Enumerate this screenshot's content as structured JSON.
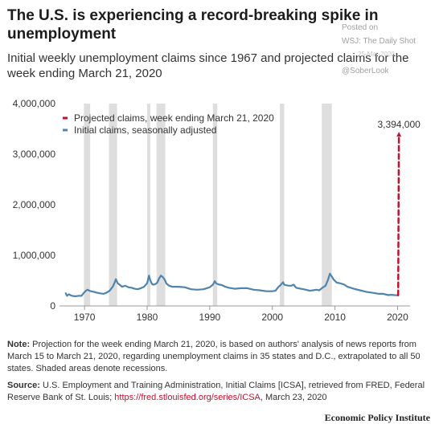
{
  "title": "The U.S. is experiencing a record-breaking spike in unemployment",
  "subtitle": "Initial weekly unemployment claims since 1967 and projected claims for the week ending March 21, 2020",
  "watermark": {
    "posted_on": "Posted on",
    "source_label": "WSJ: The Daily Shot",
    "date": "25-Mar-2020",
    "handle": "@SoberLook"
  },
  "note": {
    "label": "Note:",
    "text": " Projection for the week ending March 21, 2020, is based on authors' analysis of news reports from March 15 to March 21, 2020, regarding unemployment claims in 35 states and D.C., extrapolated to all 50 states. Shaded areas denote recessions."
  },
  "source": {
    "label": "Source:",
    "text_before": " U.S. Employment and Training Administration, Initial Claims [ICSA], retrieved from FRED, Federal Reserve Bank of St. Louis; ",
    "link": "https://fred.stlouisfed.org/series/ICSA",
    "text_after": ", March 23, 2020"
  },
  "brand": "Economic Policy Institute",
  "colors": {
    "series": "#4f84ad",
    "projection": "#c8102e",
    "recession": "#dedede",
    "axis": "#999999"
  },
  "chart_data": {
    "type": "line",
    "xlim": [
      1966,
      2022
    ],
    "ylim": [
      0,
      4000000
    ],
    "y_ticks": [
      0,
      1000000,
      2000000,
      3000000,
      4000000
    ],
    "y_tick_labels": [
      "0",
      "1,000,000",
      "2,000,000",
      "3,000,000",
      "4,000,000"
    ],
    "x_ticks": [
      1970,
      1980,
      1990,
      2000,
      2010,
      2020
    ],
    "x_tick_labels": [
      "1970",
      "1980",
      "1990",
      "2000",
      "2010",
      "2020"
    ],
    "grid": false,
    "legend_position": "top-left",
    "recessions": [
      [
        1969.9,
        1970.9
      ],
      [
        1973.9,
        1975.2
      ],
      [
        1980.0,
        1980.5
      ],
      [
        1981.5,
        1982.9
      ],
      [
        1990.5,
        1991.2
      ],
      [
        2001.2,
        2001.9
      ],
      [
        2007.9,
        2009.5
      ]
    ],
    "series": [
      {
        "name": "Initial claims, seasonally adjusted",
        "x": [
          1967.0,
          1967.2,
          1967.5,
          1967.8,
          1968.0,
          1968.5,
          1969.0,
          1969.5,
          1969.9,
          1970.2,
          1970.5,
          1970.8,
          1971.0,
          1971.5,
          1972.0,
          1972.5,
          1973.0,
          1973.5,
          1974.0,
          1974.5,
          1974.8,
          1975.0,
          1975.3,
          1975.6,
          1976.0,
          1976.5,
          1977.0,
          1977.5,
          1978.0,
          1978.5,
          1979.0,
          1979.5,
          1980.0,
          1980.3,
          1980.5,
          1980.8,
          1981.0,
          1981.3,
          1981.6,
          1981.9,
          1982.2,
          1982.5,
          1982.8,
          1983.1,
          1983.5,
          1984.0,
          1985.0,
          1986.0,
          1987.0,
          1988.0,
          1989.0,
          1990.0,
          1990.5,
          1990.8,
          1991.0,
          1991.3,
          1991.6,
          1992.0,
          1992.5,
          1993.0,
          1994.0,
          1995.0,
          1996.0,
          1997.0,
          1998.0,
          1999.0,
          2000.0,
          2000.5,
          2001.0,
          2001.3,
          2001.7,
          2001.9,
          2002.2,
          2002.6,
          2003.0,
          2003.4,
          2003.8,
          2004.5,
          2005.0,
          2005.7,
          2006.0,
          2006.5,
          2007.0,
          2007.5,
          2008.0,
          2008.5,
          2008.9,
          2009.2,
          2009.5,
          2009.8,
          2010.3,
          2010.8,
          2011.5,
          2012.0,
          2013.0,
          2014.0,
          2015.0,
          2016.0,
          2017.0,
          2017.7,
          2018.0,
          2018.5,
          2019.0,
          2019.5,
          2020.1
        ],
        "values": [
          250000,
          200000,
          230000,
          210000,
          200000,
          190000,
          200000,
          200000,
          260000,
          300000,
          320000,
          300000,
          290000,
          280000,
          260000,
          250000,
          240000,
          260000,
          300000,
          380000,
          460000,
          530000,
          450000,
          420000,
          380000,
          400000,
          370000,
          360000,
          340000,
          330000,
          350000,
          380000,
          450000,
          600000,
          510000,
          430000,
          420000,
          430000,
          460000,
          540000,
          600000,
          570000,
          520000,
          440000,
          400000,
          380000,
          380000,
          370000,
          330000,
          320000,
          330000,
          370000,
          420000,
          490000,
          450000,
          430000,
          420000,
          410000,
          380000,
          360000,
          340000,
          350000,
          350000,
          320000,
          310000,
          290000,
          290000,
          300000,
          380000,
          410000,
          470000,
          420000,
          410000,
          400000,
          400000,
          420000,
          360000,
          340000,
          330000,
          310000,
          300000,
          310000,
          320000,
          310000,
          360000,
          400000,
          520000,
          640000,
          580000,
          520000,
          460000,
          450000,
          420000,
          380000,
          340000,
          310000,
          280000,
          260000,
          240000,
          240000,
          230000,
          215000,
          220000,
          215000,
          211000
        ]
      },
      {
        "name": "Projected claims, week ending March 21, 2020",
        "x": [
          2020.1,
          2020.22
        ],
        "values": [
          211000,
          3394000
        ],
        "style": "dashed"
      }
    ],
    "annotations": [
      {
        "x": 2020.22,
        "y": 3394000,
        "text": "3,394,000"
      }
    ]
  }
}
